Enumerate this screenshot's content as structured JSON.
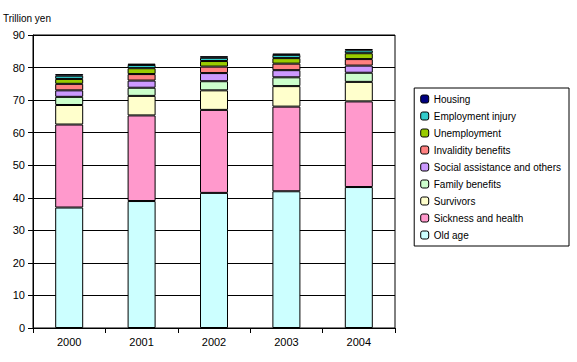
{
  "chart_data": {
    "type": "bar",
    "stacked": true,
    "grid": true,
    "legend": "right",
    "y_label": "Trillion yen",
    "categories": [
      "2000",
      "2001",
      "2002",
      "2003",
      "2004"
    ],
    "ylim": [
      0,
      90
    ],
    "yticks": [
      0,
      10,
      20,
      30,
      40,
      50,
      60,
      70,
      80,
      90
    ],
    "series": [
      {
        "name": "Old age",
        "color": "#ccffff",
        "values": [
          37,
          39,
          41.5,
          42,
          43.3
        ]
      },
      {
        "name": "Sickness and health",
        "color": "#ff99cc",
        "values": [
          25.5,
          26.3,
          25.5,
          26,
          26.3
        ]
      },
      {
        "name": "Survivors",
        "color": "#ffffcc",
        "values": [
          6,
          6,
          6,
          6.3,
          6
        ]
      },
      {
        "name": "Family benefits",
        "color": "#ccffcc",
        "values": [
          2.5,
          2.5,
          2.8,
          2.7,
          2.8
        ]
      },
      {
        "name": "Social assistance and others",
        "color": "#cc99ff",
        "values": [
          2,
          2.2,
          2.5,
          2.2,
          2.2
        ]
      },
      {
        "name": "Invalidity benefits",
        "color": "#ff8080",
        "values": [
          2,
          2,
          2,
          2,
          2
        ]
      },
      {
        "name": "Unemployment",
        "color": "#99cc00",
        "values": [
          1.5,
          1.8,
          1.7,
          1.7,
          1.8
        ]
      },
      {
        "name": "Employment injury",
        "color": "#33cccc",
        "values": [
          1,
          1,
          1,
          1,
          0.9
        ]
      },
      {
        "name": "Housing",
        "color": "#000080",
        "values": [
          0.5,
          0.4,
          0.5,
          0.4,
          0.4
        ]
      }
    ]
  }
}
